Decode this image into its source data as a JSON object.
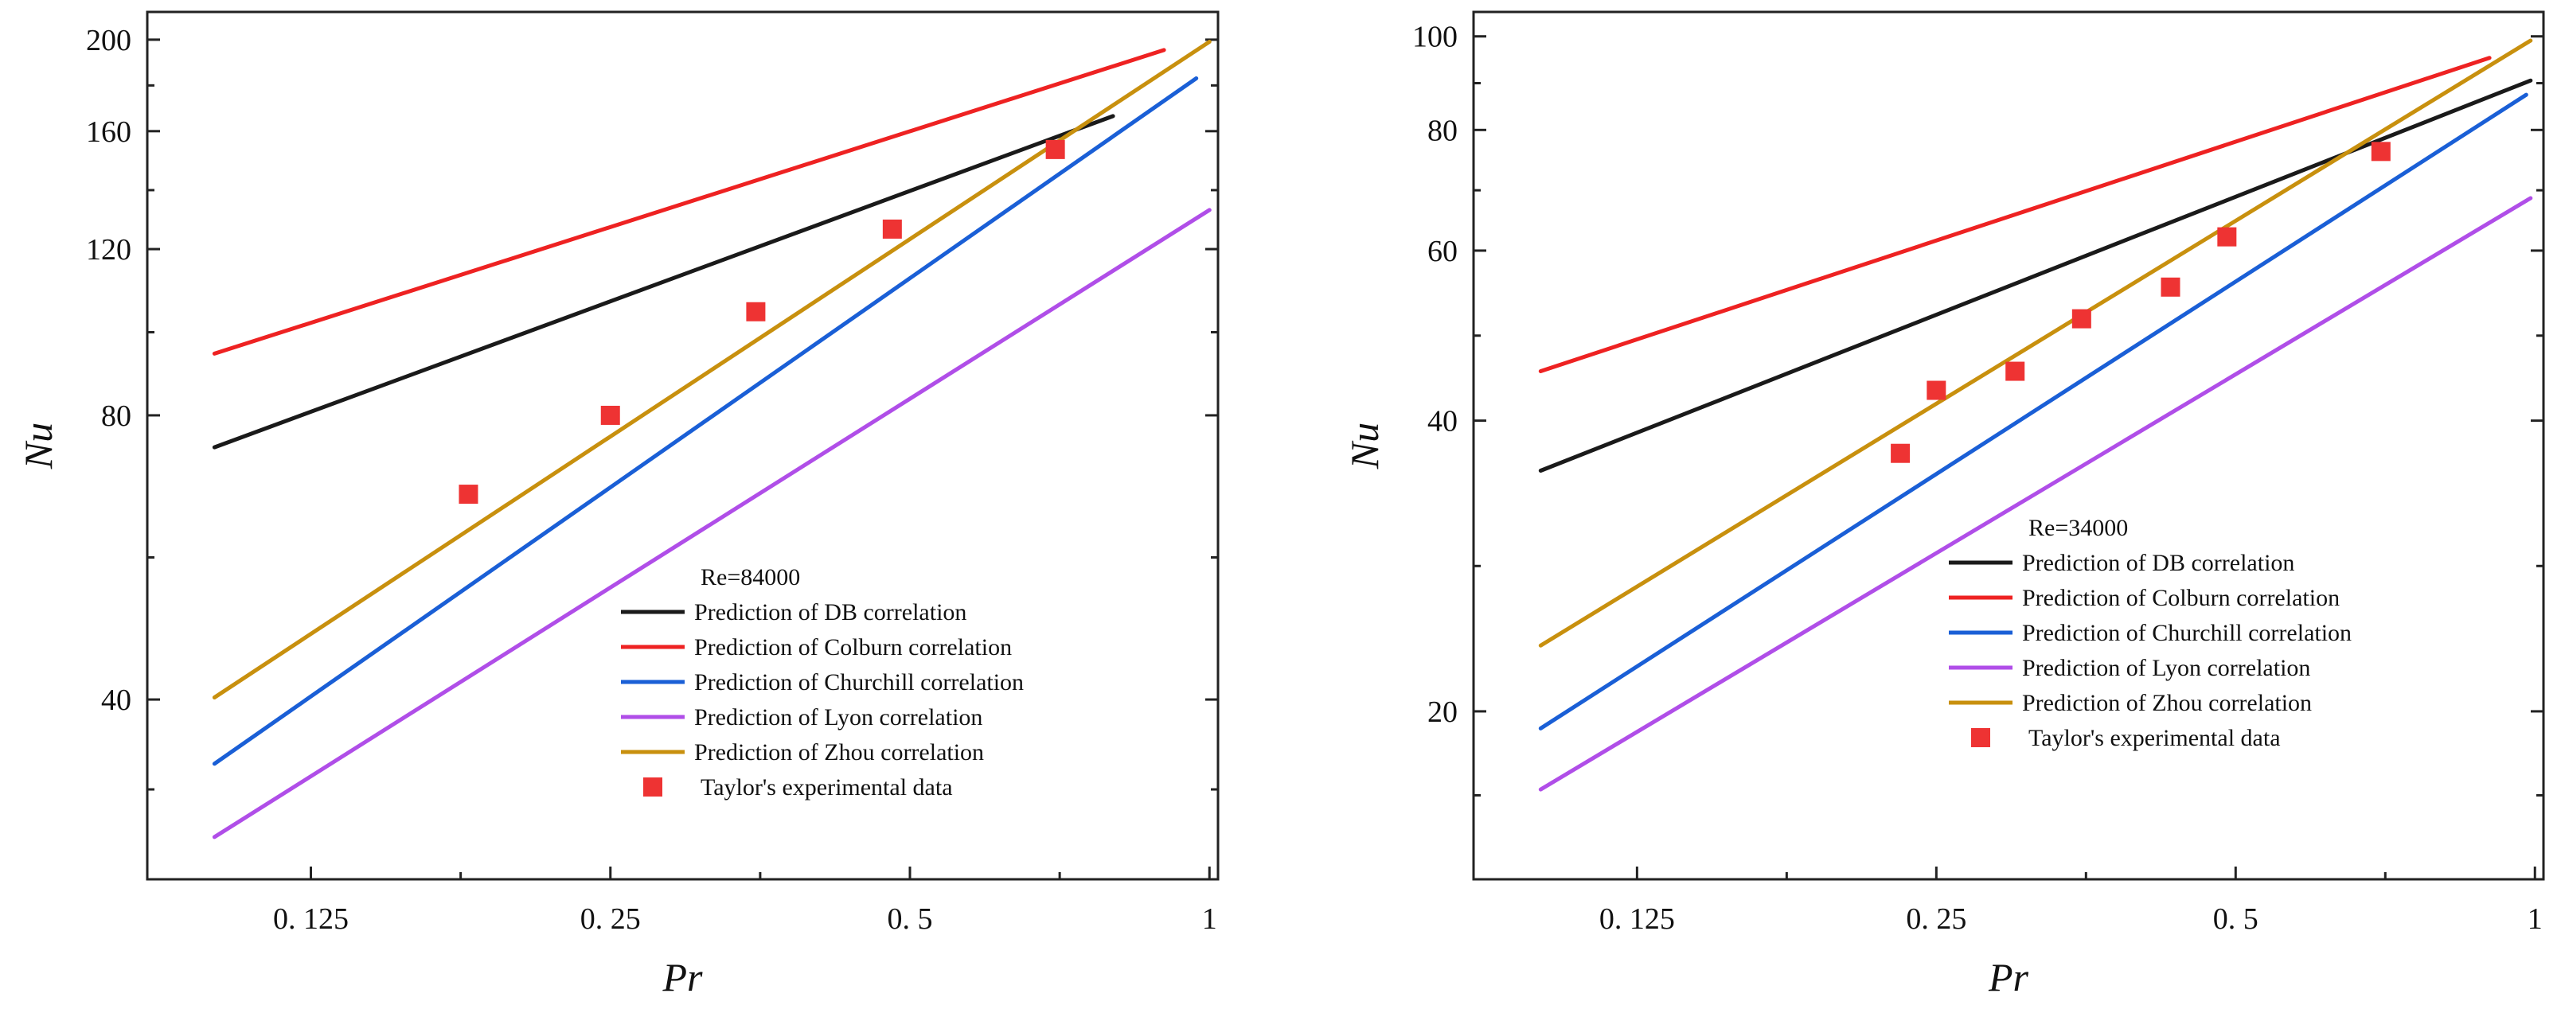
{
  "chart_data": [
    {
      "type": "line",
      "panel": "left",
      "xlabel": "Pr",
      "ylabel": "Nu",
      "xscale": "log",
      "yscale": "log",
      "xlim": [
        0.0856,
        1.02
      ],
      "ylim": [
        25.8,
        214
      ],
      "xticks": [
        0.125,
        0.25,
        0.5,
        1
      ],
      "xtick_labels": [
        "0. 125",
        "0. 25",
        "0. 5",
        "1"
      ],
      "yticks": [
        40,
        80,
        120,
        160,
        200
      ],
      "ytick_labels": [
        "40",
        "80",
        "120",
        "160",
        "200"
      ],
      "legend_title": "Re=84000",
      "legend_position": "lower-right",
      "series": [
        {
          "name": "Prediction of DB correlation",
          "color": "#1a1a1a",
          "x": [
            0.1,
            0.8
          ],
          "y": [
            74,
            166
          ]
        },
        {
          "name": "Prediction of Colburn correlation",
          "color": "#ee2222",
          "x": [
            0.1,
            0.9
          ],
          "y": [
            93,
            195
          ]
        },
        {
          "name": "Prediction of Churchill correlation",
          "color": "#1a5fd6",
          "x": [
            0.1,
            0.97
          ],
          "y": [
            34.2,
            182
          ]
        },
        {
          "name": "Prediction of Lyon correlation",
          "color": "#b04ee8",
          "x": [
            0.1,
            1.0
          ],
          "y": [
            28.6,
            132
          ]
        },
        {
          "name": "Prediction of Zhou correlation",
          "color": "#c8900e",
          "x": [
            0.1,
            1.0
          ],
          "y": [
            40.2,
            199
          ]
        }
      ],
      "markers": {
        "name": "Taylor's experimental data",
        "color": "#ee3333",
        "x": [
          0.18,
          0.25,
          0.35,
          0.48,
          0.7
        ],
        "y": [
          66,
          80,
          103,
          126,
          153
        ]
      }
    },
    {
      "type": "line",
      "panel": "right",
      "xlabel": "Pr",
      "ylabel": "Nu",
      "xscale": "log",
      "yscale": "log",
      "xlim": [
        0.0856,
        1.02
      ],
      "ylim": [
        13.4,
        106
      ],
      "xticks": [
        0.125,
        0.25,
        0.5,
        1
      ],
      "xtick_labels": [
        "0. 125",
        "0. 25",
        "0. 5",
        "1"
      ],
      "yticks": [
        20,
        40,
        60,
        80,
        100
      ],
      "ytick_labels": [
        "20",
        "40",
        "60",
        "80",
        "100"
      ],
      "legend_title": "Re=34000",
      "legend_position": "center-right",
      "series": [
        {
          "name": "Prediction of DB correlation",
          "color": "#1a1a1a",
          "x": [
            0.1,
            0.99
          ],
          "y": [
            35.5,
            90
          ]
        },
        {
          "name": "Prediction of Colburn correlation",
          "color": "#ee2222",
          "x": [
            0.1,
            0.9
          ],
          "y": [
            45,
            95
          ]
        },
        {
          "name": "Prediction of Churchill correlation",
          "color": "#1a5fd6",
          "x": [
            0.1,
            0.98
          ],
          "y": [
            19.2,
            87
          ]
        },
        {
          "name": "Prediction of Lyon correlation",
          "color": "#b04ee8",
          "x": [
            0.1,
            0.99
          ],
          "y": [
            16.6,
            68
          ]
        },
        {
          "name": "Prediction of Zhou correlation",
          "color": "#c8900e",
          "x": [
            0.1,
            0.99
          ],
          "y": [
            23.4,
            99
          ]
        }
      ],
      "markers": {
        "name": "Taylor's experimental data",
        "color": "#ee3333",
        "x": [
          0.23,
          0.25,
          0.3,
          0.35,
          0.43,
          0.49,
          0.7
        ],
        "y": [
          37,
          43,
          45,
          51,
          55,
          62,
          76
        ]
      }
    }
  ]
}
